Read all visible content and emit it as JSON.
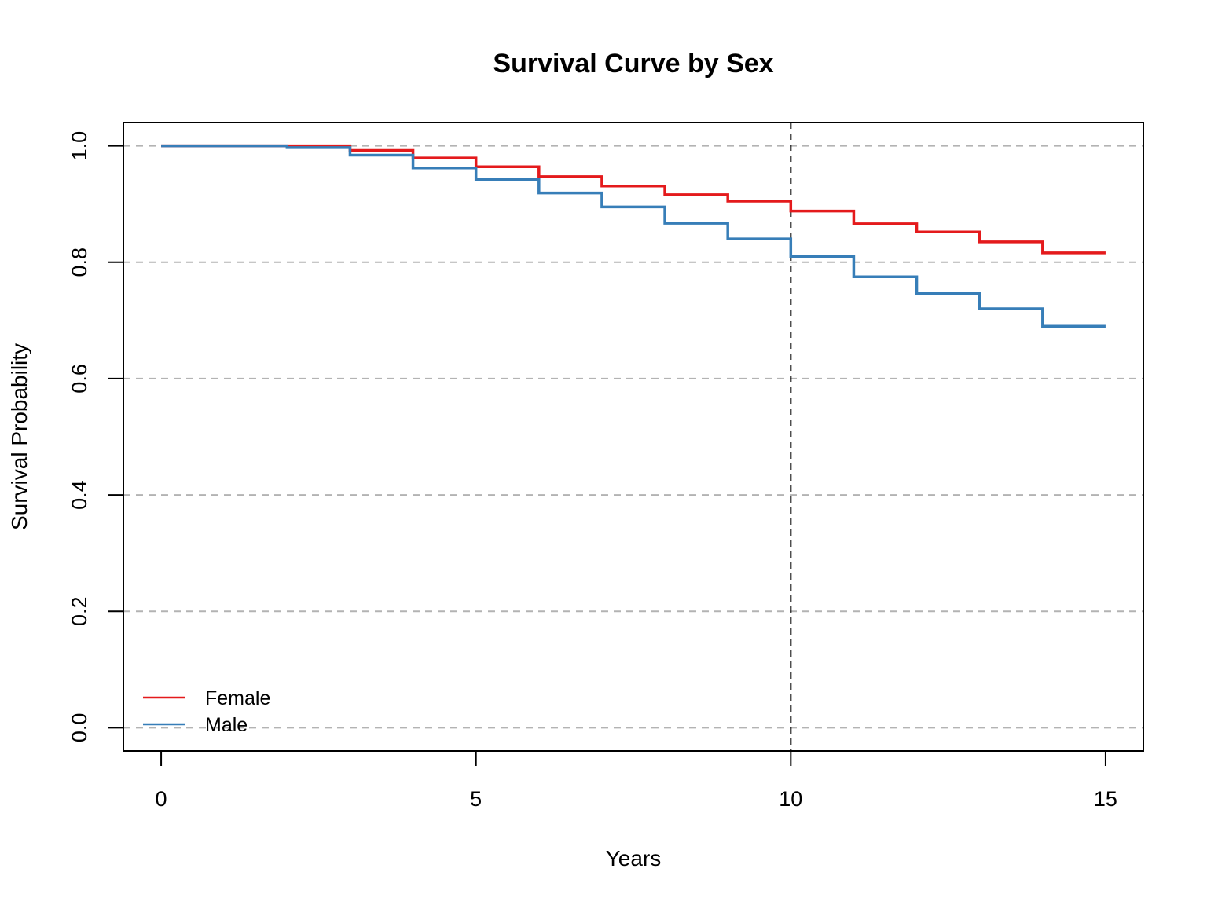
{
  "chart_data": {
    "type": "line",
    "step": true,
    "title": "Survival Curve by Sex",
    "xlabel": "Years",
    "ylabel": "Survival Probability",
    "xlim": [
      -0.6,
      15.6
    ],
    "ylim": [
      -0.04,
      1.04
    ],
    "xticks": [
      0,
      5,
      10,
      15
    ],
    "xtick_labels": [
      "0",
      "5",
      "10",
      "15"
    ],
    "yticks": [
      0,
      0.2,
      0.4,
      0.6,
      0.8,
      1.0
    ],
    "ytick_labels": [
      "0.0",
      "0.2",
      "0.4",
      "0.6",
      "0.8",
      "1.0"
    ],
    "grid": "horizontal dashed",
    "reference_line_x": 10,
    "legend_position": "bottom-left",
    "series": [
      {
        "name": "Female",
        "color": "#e41a1c",
        "x": [
          0,
          1,
          2,
          3,
          4,
          5,
          6,
          7,
          8,
          9,
          10,
          11,
          12,
          13,
          14,
          15
        ],
        "y": [
          1.0,
          1.0,
          1.0,
          0.992,
          0.979,
          0.964,
          0.947,
          0.931,
          0.916,
          0.905,
          0.888,
          0.866,
          0.852,
          0.835,
          0.816,
          0.816
        ]
      },
      {
        "name": "Male",
        "color": "#377eb8",
        "x": [
          0,
          1,
          2,
          3,
          4,
          5,
          6,
          7,
          8,
          9,
          10,
          11,
          12,
          13,
          14,
          15
        ],
        "y": [
          1.0,
          1.0,
          0.997,
          0.984,
          0.962,
          0.942,
          0.919,
          0.895,
          0.867,
          0.84,
          0.81,
          0.775,
          0.746,
          0.72,
          0.69,
          0.69
        ]
      }
    ]
  }
}
